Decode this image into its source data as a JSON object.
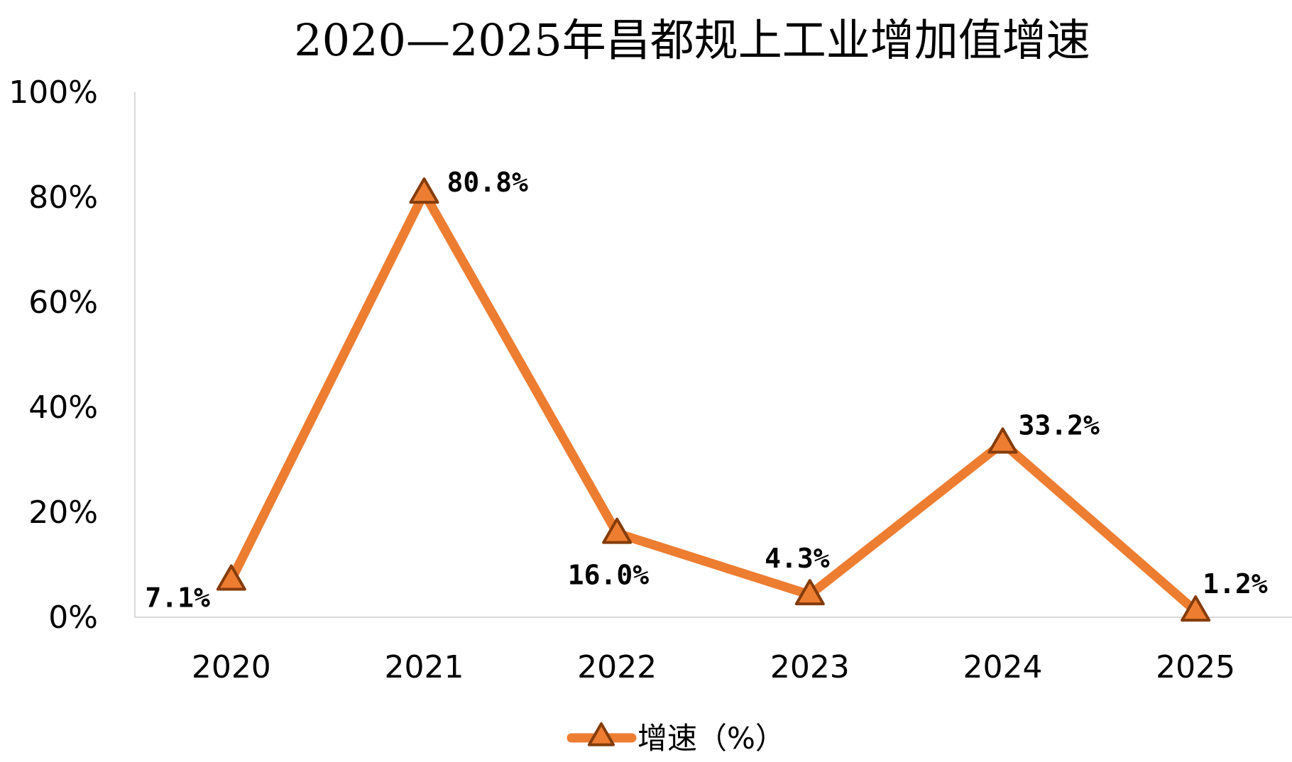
{
  "chart_data": {
    "type": "line",
    "title": "2020—2025年昌都规上工业增加值增速",
    "xlabel": "",
    "ylabel": "",
    "categories": [
      "2020",
      "2021",
      "2022",
      "2023",
      "2024",
      "2025"
    ],
    "series": [
      {
        "name": "增速（%）",
        "values": [
          7.1,
          80.8,
          16.0,
          4.3,
          33.2,
          1.2
        ],
        "data_labels": [
          "7.1%",
          "80.8%",
          "16.0%",
          "4.3%",
          "33.2%",
          "1.2%"
        ],
        "color": "#ED7D31",
        "marker_edge_color": "#843C0C",
        "marker": "triangle"
      }
    ],
    "ylim": [
      0,
      100
    ],
    "yticks": [
      0,
      20,
      40,
      60,
      80,
      100
    ],
    "ytick_labels": [
      "0%",
      "20%",
      "40%",
      "60%",
      "80%",
      "100%"
    ],
    "grid": false,
    "legend_position": "bottom",
    "axis_color": "#D9D9D9"
  }
}
